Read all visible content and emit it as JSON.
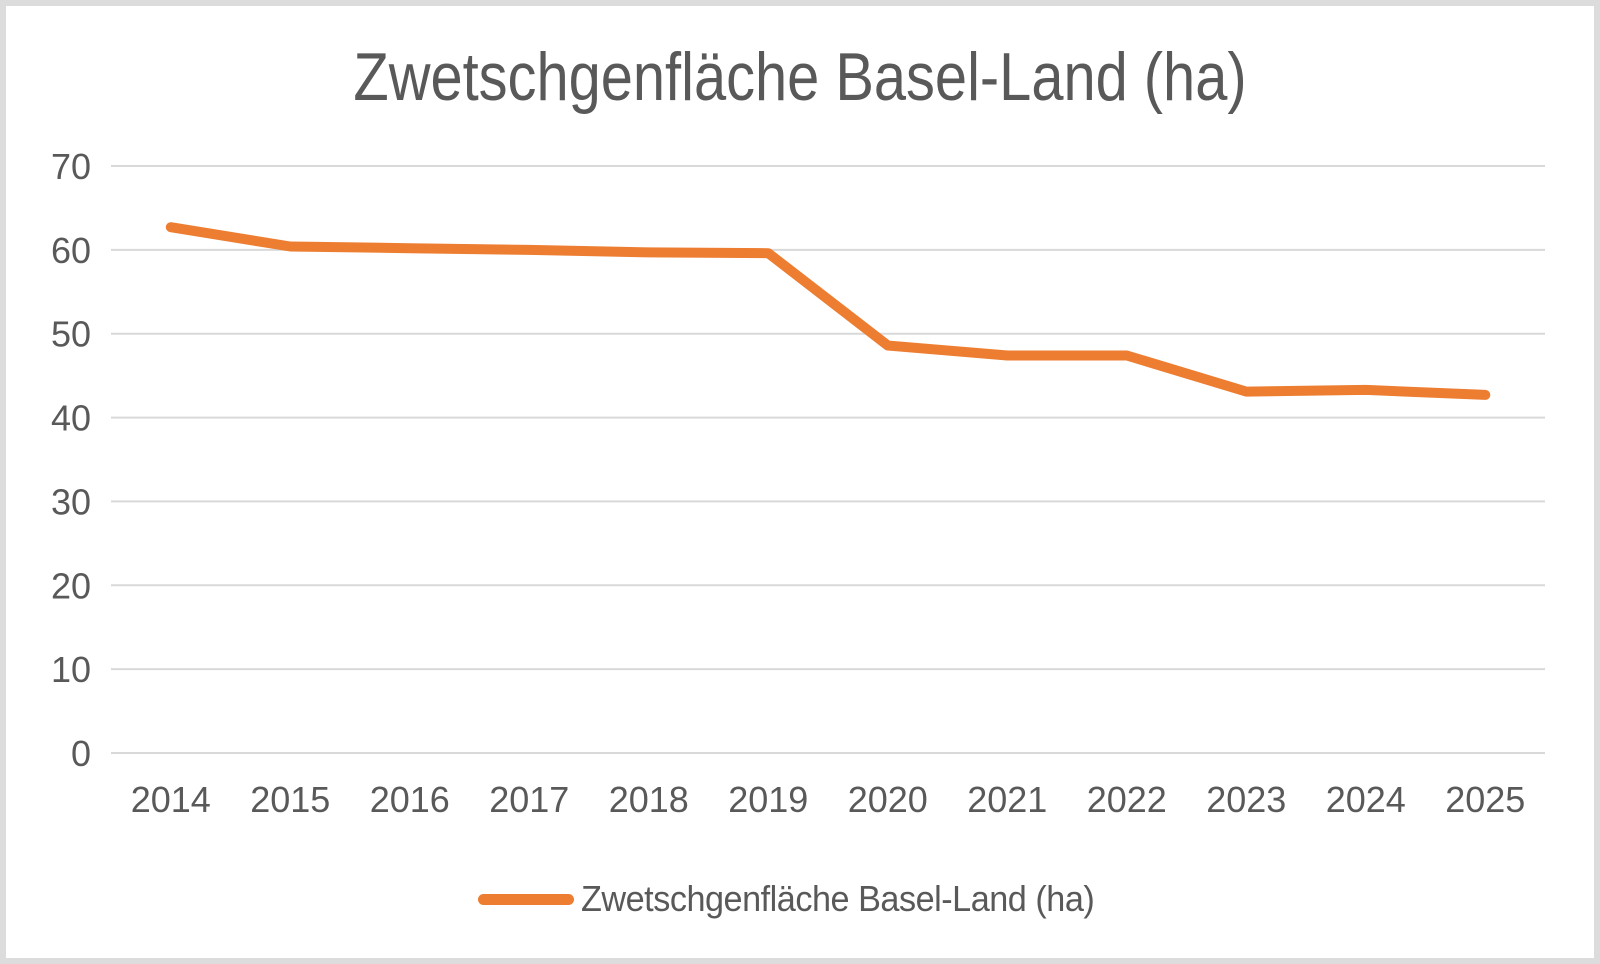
{
  "frame": {
    "background": "#FFFFFF",
    "border_color": "#DCDCDC"
  },
  "title": "Zwetschgenfläche Basel-Land (ha)",
  "title_color": "#595959",
  "legend": {
    "label": "Zwetschgenfläche Basel-Land (ha)",
    "swatch_color": "#ED7D31",
    "position": "bottom"
  },
  "chart_data": {
    "type": "line",
    "title": "Zwetschgenfläche Basel-Land (ha)",
    "categories": [
      "2014",
      "2015",
      "2016",
      "2017",
      "2018",
      "2019",
      "2020",
      "2021",
      "2022",
      "2023",
      "2024",
      "2025"
    ],
    "series": [
      {
        "name": "Zwetschgenfläche Basel-Land (ha)",
        "values": [
          62.7,
          60.4,
          60.2,
          60.0,
          59.7,
          59.6,
          48.6,
          47.4,
          47.4,
          43.1,
          43.3,
          42.7
        ],
        "color": "#ED7D31",
        "stroke_width": 10
      }
    ],
    "xlabel": "",
    "ylabel": "",
    "ylim": [
      0,
      70
    ],
    "yticks": [
      0,
      10,
      20,
      30,
      40,
      50,
      60,
      70
    ],
    "grid": true,
    "gridline_color": "#D9D9D9",
    "axis_line_color": "#D9D9D9",
    "axis_label_color": "#595959",
    "legend_position": "bottom"
  }
}
